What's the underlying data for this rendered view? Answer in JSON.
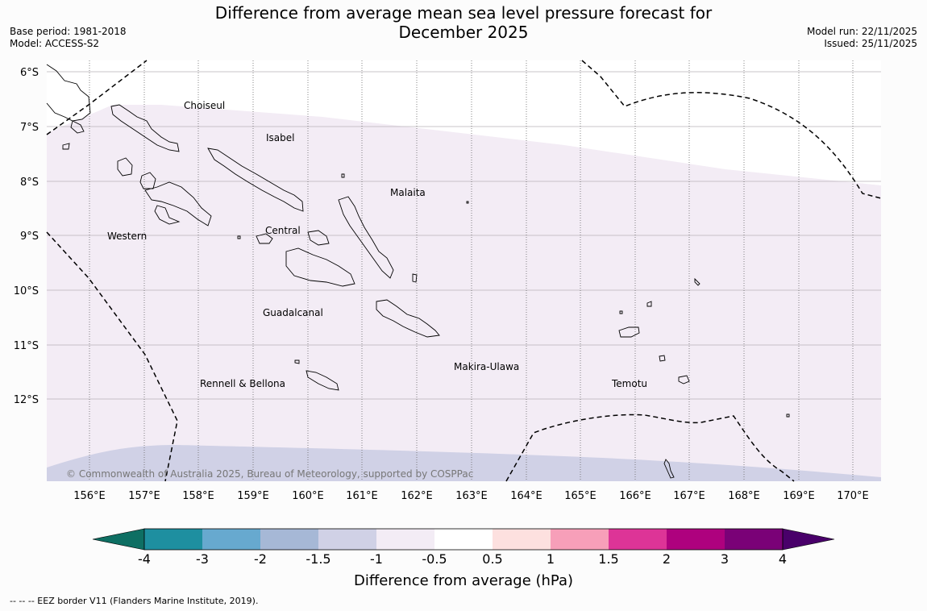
{
  "title_line1": "Difference from average mean sea level pressure forecast for",
  "title_line2": "December 2025",
  "base_period": "Base period: 1981-2018",
  "model": "Model: ACCESS-S2",
  "model_run": "Model run: 22/11/2025",
  "issued": "Issued: 25/11/2025",
  "lat_labels": [
    "6°S",
    "7°S",
    "8°S",
    "9°S",
    "10°S",
    "11°S",
    "12°S"
  ],
  "lon_labels": [
    "156°E",
    "157°E",
    "158°E",
    "159°E",
    "160°E",
    "161°E",
    "162°E",
    "163°E",
    "164°E",
    "165°E",
    "166°E",
    "167°E",
    "168°E",
    "169°E",
    "170°E"
  ],
  "regions": {
    "choiseul": "Choiseul",
    "isabel": "Isabel",
    "malaita": "Malaita",
    "western": "Western",
    "central": "Central",
    "guadalcanal": "Guadalcanal",
    "makira": "Makira-Ulawa",
    "temotu": "Temotu",
    "rennell": "Rennell & Bellona"
  },
  "copyright": "© Commonwealth of Australia 2025, Bureau of Meteorology, supported by COSPPac",
  "colorbar": {
    "ticks": [
      "-4",
      "-3",
      "-2",
      "-1.5",
      "-1",
      "-0.5",
      "0.5",
      "1",
      "1.5",
      "2",
      "3",
      "4"
    ],
    "colors": [
      "#0e6f63",
      "#1e8fa0",
      "#67a9cf",
      "#a6b8d6",
      "#d0d1e6",
      "#f3ecf5",
      "#ffffff",
      "#fde0df",
      "#f79fb9",
      "#dd3497",
      "#ae017e",
      "#7a0177",
      "#49006a"
    ],
    "title": "Difference from average (hPa)"
  },
  "eez_note": "--  --  -- EEZ border V11 (Flanders Marine Institute, 2019)."
}
